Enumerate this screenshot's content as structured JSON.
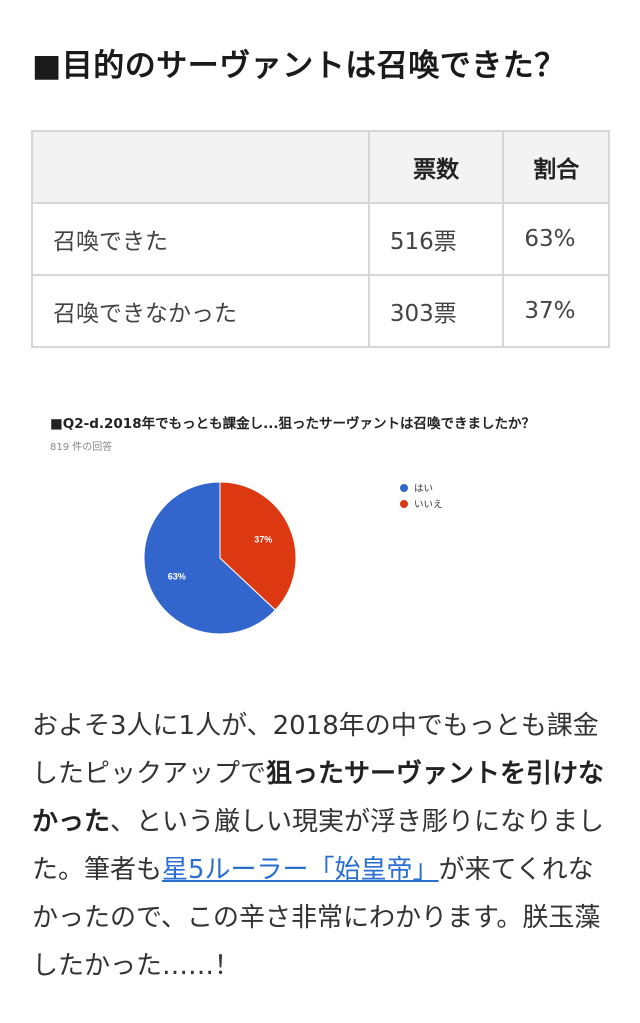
{
  "heading": "■目的のサーヴァントは召喚できた？",
  "table": {
    "headers": [
      "",
      "票数",
      "割合"
    ],
    "rows": [
      [
        "召喚できた",
        "516票",
        "63%"
      ],
      [
        "召喚できなかった",
        "303票",
        "37%"
      ]
    ]
  },
  "chart_data": {
    "type": "pie",
    "title": "■Q2-d.2018年でもっとも課金し...狙ったサーヴァントは召喚できましたか？",
    "subtitle": "819 件の回答",
    "categories": [
      "はい",
      "いいえ"
    ],
    "values": [
      63,
      37
    ],
    "labels": [
      "63%",
      "37%"
    ],
    "colors": [
      "#3366cc",
      "#dc3912"
    ],
    "legend": "right"
  },
  "body": {
    "p1": "およそ3人に1人が、2018年の中でもっとも課金したピックアップで",
    "b1": "狙ったサーヴァントを引けなかった",
    "p2": "、という厳しい現実が浮き彫りになりました。筆者も",
    "link": "星5ルーラー「始皇帝」",
    "p3": "が来てくれなかったので、この辛さ非常にわかります。朕玉藻したかった……！"
  }
}
